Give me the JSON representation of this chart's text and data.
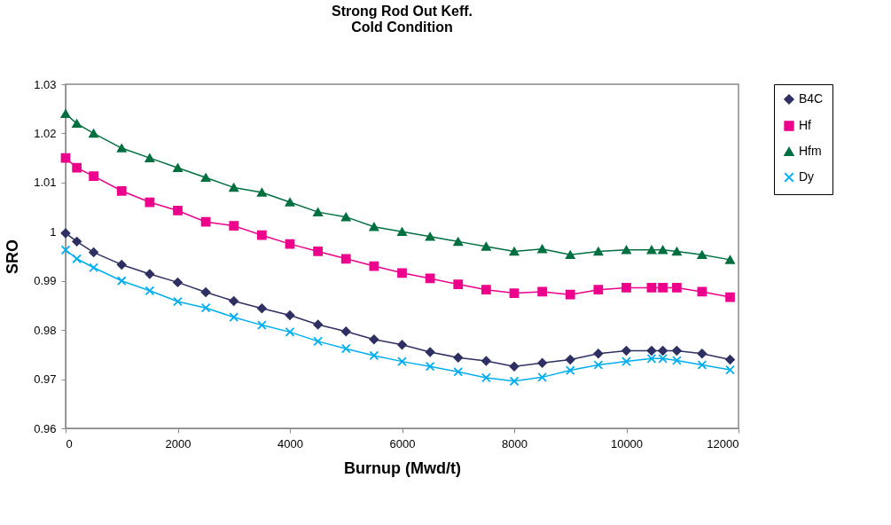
{
  "chart_data": {
    "type": "line",
    "title": [
      "Strong Rod Out Keff.",
      "Cold Condition"
    ],
    "xlabel": "Burnup (Mwd/t)",
    "ylabel": "SRO",
    "x": [
      0,
      200,
      500,
      1000,
      1500,
      2000,
      2500,
      3000,
      3500,
      4000,
      4500,
      5000,
      5500,
      6000,
      6500,
      7000,
      7500,
      8000,
      8500,
      9000,
      9500,
      10000,
      10450,
      10650,
      10900,
      11350,
      11850
    ],
    "series": [
      {
        "name": "B4C",
        "color": "#2e2f62",
        "marker": "diamond",
        "values": [
          0.9997,
          0.998,
          0.9958,
          0.9933,
          0.9914,
          0.9897,
          0.9877,
          0.9859,
          0.9844,
          0.983,
          0.9811,
          0.9797,
          0.9781,
          0.977,
          0.9755,
          0.9744,
          0.9737,
          0.9726,
          0.9733,
          0.974,
          0.9752,
          0.9758,
          0.9758,
          0.9758,
          0.9758,
          0.9752,
          0.974
        ]
      },
      {
        "name": "Hf",
        "color": "#ec008c",
        "marker": "square",
        "values": [
          1.015,
          1.013,
          1.0113,
          1.0083,
          1.006,
          1.0043,
          1.002,
          1.0012,
          0.9993,
          0.9975,
          0.996,
          0.9945,
          0.993,
          0.9916,
          0.9905,
          0.9893,
          0.9882,
          0.9875,
          0.9878,
          0.9872,
          0.9882,
          0.9886,
          0.9886,
          0.9886,
          0.9886,
          0.9878,
          0.9867
        ]
      },
      {
        "name": "Hfm",
        "color": "#007040",
        "marker": "triangle",
        "values": [
          1.024,
          1.022,
          1.02,
          1.017,
          1.015,
          1.013,
          1.011,
          1.009,
          1.008,
          1.006,
          1.004,
          1.003,
          1.001,
          1.0,
          0.999,
          0.998,
          0.997,
          0.996,
          0.9965,
          0.9953,
          0.996,
          0.9963,
          0.9963,
          0.9963,
          0.996,
          0.9953,
          0.9943
        ]
      },
      {
        "name": "Dy",
        "color": "#00aeef",
        "marker": "cross",
        "values": [
          0.9963,
          0.9945,
          0.9927,
          0.99,
          0.988,
          0.9858,
          0.9845,
          0.9826,
          0.981,
          0.9796,
          0.9777,
          0.9762,
          0.9748,
          0.9736,
          0.9726,
          0.9715,
          0.9703,
          0.9696,
          0.9704,
          0.9718,
          0.9729,
          0.9736,
          0.9742,
          0.9742,
          0.9738,
          0.9729,
          0.9719
        ]
      }
    ],
    "xlim": [
      0,
      12000
    ],
    "xticks": [
      0,
      2000,
      4000,
      6000,
      8000,
      10000,
      12000
    ],
    "ylim": [
      0.96,
      1.03
    ],
    "yticks": [
      0.96,
      0.97,
      0.98,
      0.99,
      1,
      1.01,
      1.02,
      1.03
    ],
    "grid": false,
    "legend": "right",
    "line_style": "solid"
  }
}
